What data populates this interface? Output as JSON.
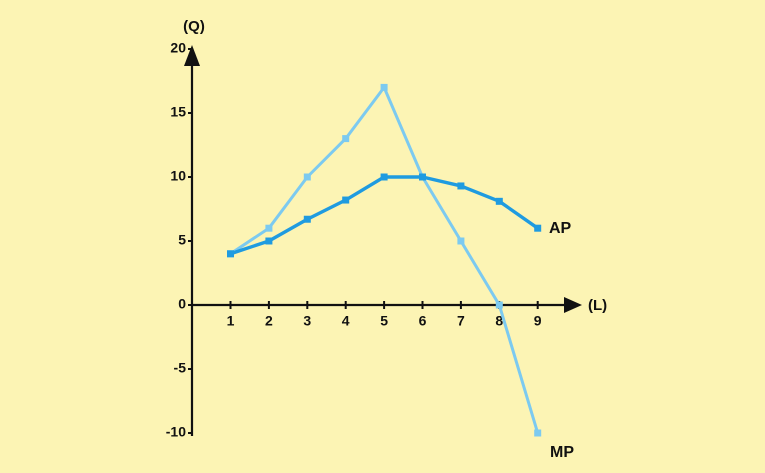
{
  "chart_data": {
    "type": "line",
    "title": "",
    "xlabel": "(L)",
    "ylabel": "(Q)",
    "x": [
      1,
      2,
      3,
      4,
      5,
      6,
      7,
      8,
      9
    ],
    "x_ticks": [
      "1",
      "2",
      "3",
      "4",
      "5",
      "6",
      "7",
      "8",
      "9"
    ],
    "y_ticks": [
      "20",
      "15",
      "10",
      "5",
      "0",
      "-5",
      "-10"
    ],
    "y_tick_values": [
      20,
      15,
      10,
      5,
      0,
      -5,
      -10
    ],
    "ylim": [
      -10,
      20
    ],
    "grid": false,
    "series": [
      {
        "name": "MP",
        "x": [
          1,
          2,
          3,
          4,
          5,
          6,
          7,
          8,
          9
        ],
        "values": [
          4,
          6,
          10,
          13,
          17,
          10,
          5,
          0,
          -10
        ],
        "color": "#7ccaf0"
      },
      {
        "name": "AP",
        "x": [
          1,
          2,
          3,
          4,
          5,
          6,
          7,
          8,
          9
        ],
        "values": [
          4,
          5,
          6.7,
          8.2,
          10,
          10,
          9.3,
          8.1,
          6
        ],
        "color": "#1f9be0"
      }
    ]
  }
}
